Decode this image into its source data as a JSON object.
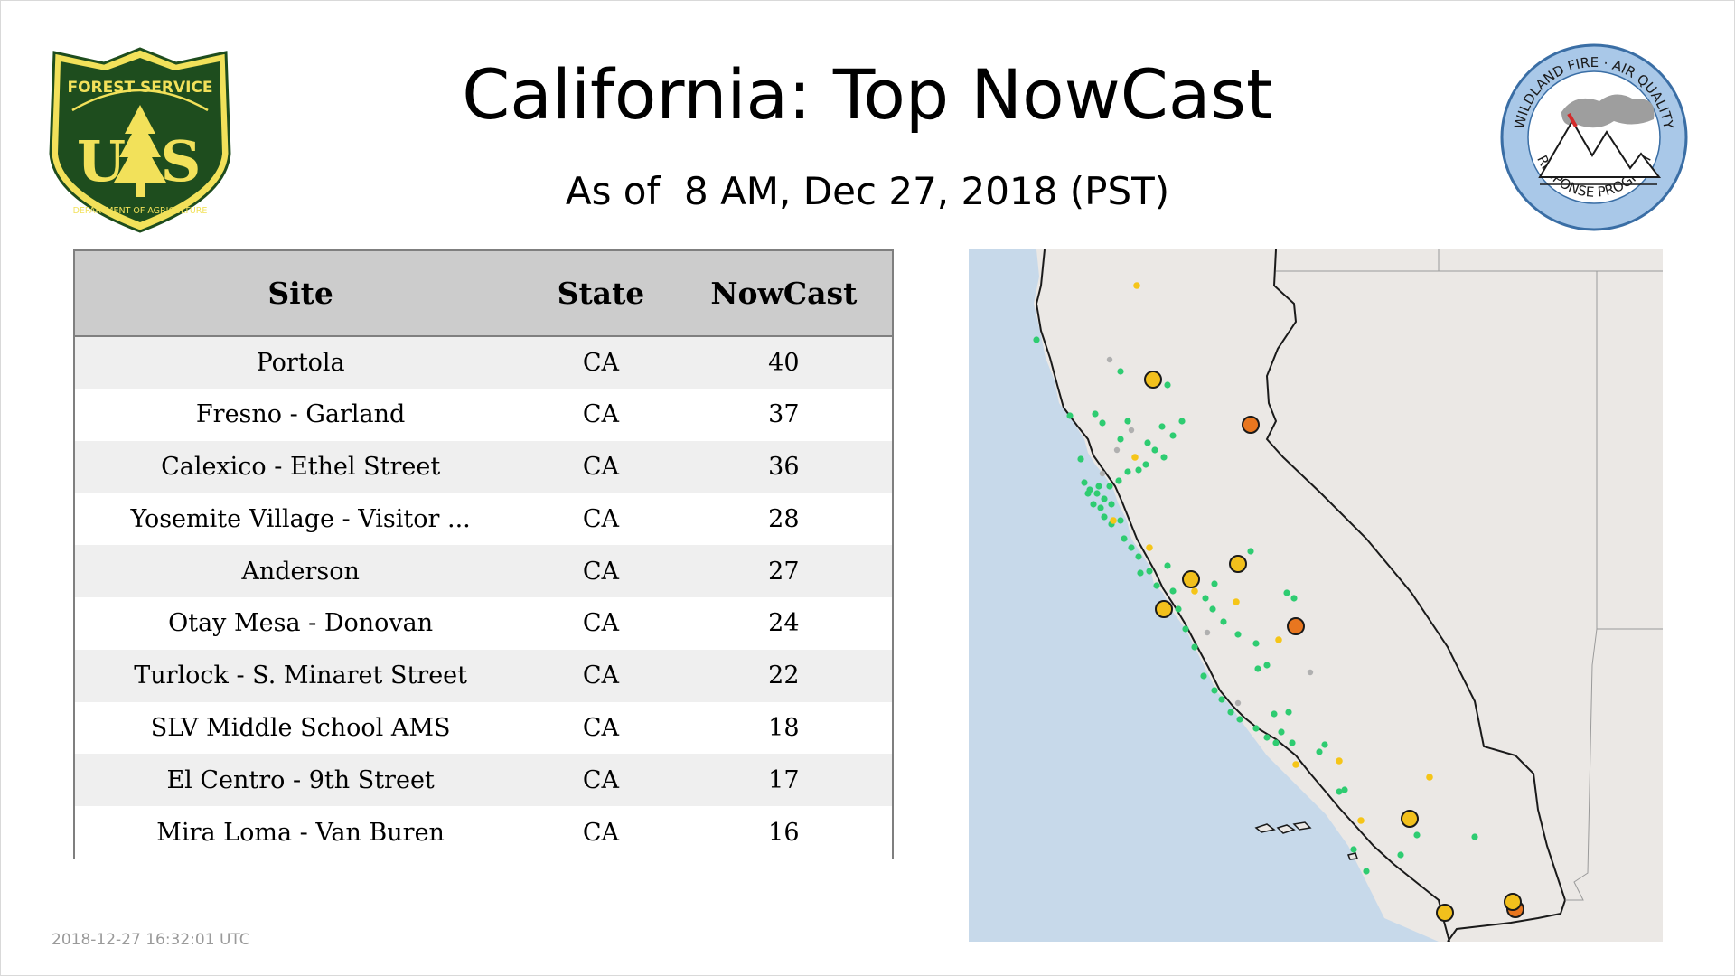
{
  "header": {
    "title": "California: Top NowCast",
    "subtitle": "As of  8 AM, Dec 27, 2018 (PST)"
  },
  "logos": {
    "usfs": {
      "icon": "usfs-shield-logo",
      "top_text": "FOREST SERVICE",
      "letters": "US",
      "bottom_text": "DEPARTMENT OF AGRICULTURE",
      "colors": {
        "shield": "#1e4d1e",
        "gold": "#f2e15a"
      }
    },
    "wfa": {
      "icon": "wildland-fire-air-quality-logo",
      "top_text": "WILDLAND FIRE · AIR QUALITY",
      "bottom_text": "RESPONSE PROGRAM",
      "colors": {
        "ring": "#a9c8e8",
        "ring_stroke": "#3a6ea5"
      }
    }
  },
  "table": {
    "columns": [
      "Site",
      "State",
      "NowCast"
    ],
    "rows": [
      {
        "site": "Portola",
        "state": "CA",
        "nowcast": "40"
      },
      {
        "site": "Fresno - Garland",
        "state": "CA",
        "nowcast": "37"
      },
      {
        "site": "Calexico - Ethel Street",
        "state": "CA",
        "nowcast": "36"
      },
      {
        "site": "Yosemite Village - Visitor ...",
        "state": "CA",
        "nowcast": "28"
      },
      {
        "site": "Anderson",
        "state": "CA",
        "nowcast": "27"
      },
      {
        "site": "Otay Mesa - Donovan",
        "state": "CA",
        "nowcast": "24"
      },
      {
        "site": "Turlock - S. Minaret Street",
        "state": "CA",
        "nowcast": "22"
      },
      {
        "site": "SLV Middle School AMS",
        "state": "CA",
        "nowcast": "18"
      },
      {
        "site": "El Centro - 9th Street",
        "state": "CA",
        "nowcast": "17"
      },
      {
        "site": "Mira Loma - Van Buren",
        "state": "CA",
        "nowcast": "16"
      }
    ]
  },
  "timestamp": "2018-12-27 16:32:01 UTC",
  "map": {
    "region": "California",
    "colors": {
      "ocean": "#c7d9ea",
      "land": "#ebe8e5",
      "border": "#1a1a1a",
      "good": "#2ecc71",
      "moderate_small": "#f5c518",
      "moderate_large": "#f2c01c",
      "usg": "#e8761f",
      "nodata": "#b0b0b0"
    }
  }
}
